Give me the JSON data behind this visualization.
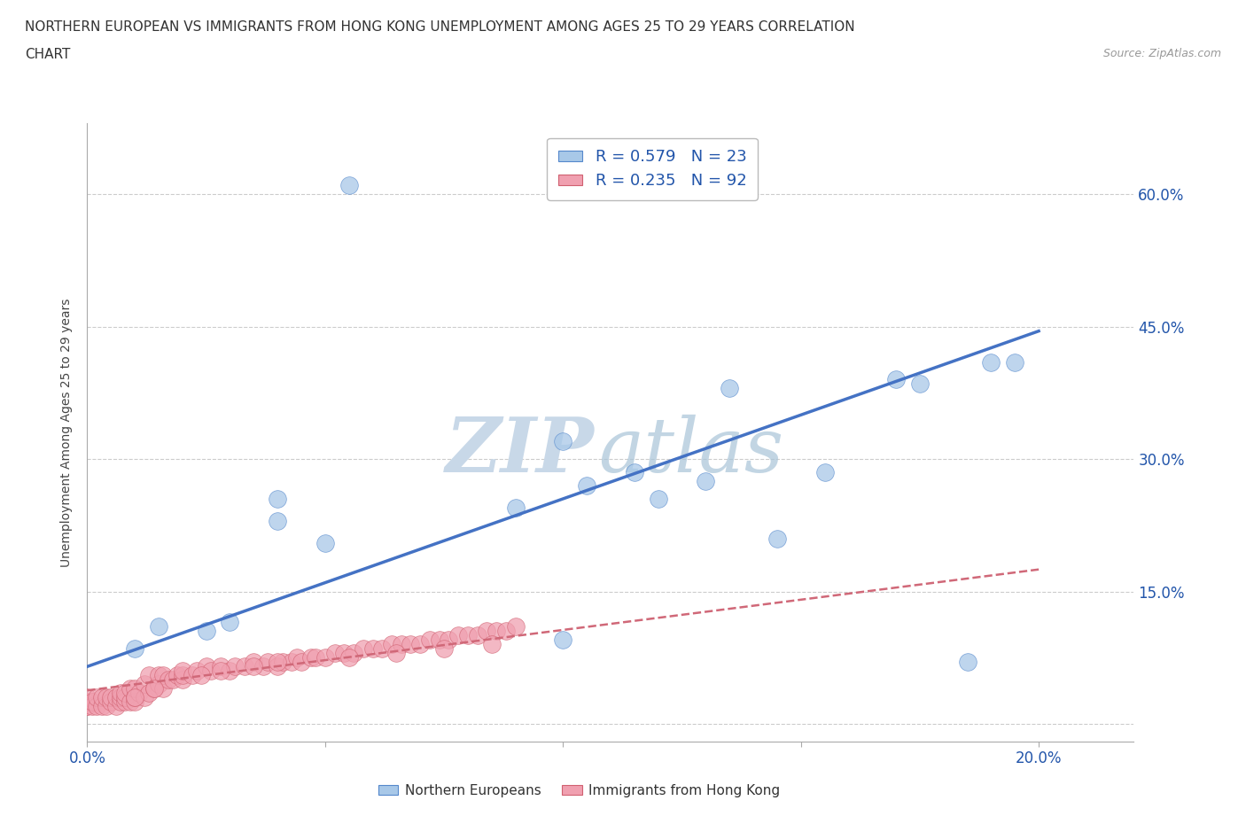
{
  "title_line1": "NORTHERN EUROPEAN VS IMMIGRANTS FROM HONG KONG UNEMPLOYMENT AMONG AGES 25 TO 29 YEARS CORRELATION",
  "title_line2": "CHART",
  "source_text": "Source: ZipAtlas.com",
  "ylabel": "Unemployment Among Ages 25 to 29 years",
  "xlim": [
    0.0,
    0.22
  ],
  "ylim": [
    -0.02,
    0.68
  ],
  "xticks": [
    0.0,
    0.05,
    0.1,
    0.15,
    0.2
  ],
  "xtick_labels": [
    "0.0%",
    "",
    "",
    "",
    "20.0%"
  ],
  "yticks": [
    0.0,
    0.15,
    0.3,
    0.45,
    0.6
  ],
  "ytick_labels_right": [
    "",
    "15.0%",
    "30.0%",
    "45.0%",
    "60.0%"
  ],
  "blue_scatter_x": [
    0.055,
    0.01,
    0.015,
    0.025,
    0.03,
    0.04,
    0.04,
    0.05,
    0.09,
    0.1,
    0.105,
    0.115,
    0.12,
    0.13,
    0.145,
    0.155,
    0.175,
    0.185,
    0.195,
    0.1,
    0.135,
    0.17,
    0.19
  ],
  "blue_scatter_y": [
    0.61,
    0.085,
    0.11,
    0.105,
    0.115,
    0.23,
    0.255,
    0.205,
    0.245,
    0.095,
    0.27,
    0.285,
    0.255,
    0.275,
    0.21,
    0.285,
    0.385,
    0.07,
    0.41,
    0.32,
    0.38,
    0.39,
    0.41
  ],
  "pink_scatter_x": [
    0.0,
    0.0,
    0.0,
    0.0,
    0.001,
    0.001,
    0.002,
    0.002,
    0.003,
    0.003,
    0.004,
    0.004,
    0.005,
    0.005,
    0.006,
    0.006,
    0.007,
    0.007,
    0.007,
    0.008,
    0.008,
    0.008,
    0.009,
    0.009,
    0.01,
    0.01,
    0.01,
    0.011,
    0.012,
    0.012,
    0.013,
    0.013,
    0.014,
    0.015,
    0.015,
    0.016,
    0.016,
    0.017,
    0.018,
    0.019,
    0.02,
    0.02,
    0.02,
    0.022,
    0.023,
    0.025,
    0.026,
    0.028,
    0.03,
    0.031,
    0.033,
    0.035,
    0.037,
    0.038,
    0.04,
    0.041,
    0.043,
    0.044,
    0.045,
    0.047,
    0.048,
    0.05,
    0.052,
    0.054,
    0.056,
    0.058,
    0.06,
    0.062,
    0.064,
    0.066,
    0.068,
    0.07,
    0.072,
    0.074,
    0.076,
    0.078,
    0.08,
    0.082,
    0.084,
    0.086,
    0.088,
    0.09,
    0.01,
    0.014,
    0.024,
    0.028,
    0.035,
    0.04,
    0.055,
    0.065,
    0.075,
    0.085
  ],
  "pink_scatter_y": [
    0.02,
    0.02,
    0.025,
    0.03,
    0.02,
    0.025,
    0.02,
    0.03,
    0.02,
    0.03,
    0.02,
    0.03,
    0.025,
    0.03,
    0.02,
    0.03,
    0.025,
    0.03,
    0.035,
    0.025,
    0.03,
    0.035,
    0.025,
    0.04,
    0.025,
    0.03,
    0.04,
    0.035,
    0.03,
    0.045,
    0.035,
    0.055,
    0.04,
    0.045,
    0.055,
    0.04,
    0.055,
    0.05,
    0.05,
    0.055,
    0.05,
    0.055,
    0.06,
    0.055,
    0.06,
    0.065,
    0.06,
    0.065,
    0.06,
    0.065,
    0.065,
    0.07,
    0.065,
    0.07,
    0.065,
    0.07,
    0.07,
    0.075,
    0.07,
    0.075,
    0.075,
    0.075,
    0.08,
    0.08,
    0.08,
    0.085,
    0.085,
    0.085,
    0.09,
    0.09,
    0.09,
    0.09,
    0.095,
    0.095,
    0.095,
    0.1,
    0.1,
    0.1,
    0.105,
    0.105,
    0.105,
    0.11,
    0.03,
    0.04,
    0.055,
    0.06,
    0.065,
    0.07,
    0.075,
    0.08,
    0.085,
    0.09
  ],
  "blue_line_x": [
    0.0,
    0.2
  ],
  "blue_line_y": [
    0.065,
    0.445
  ],
  "pink_line_x": [
    0.0,
    0.2
  ],
  "pink_line_y": [
    0.038,
    0.175
  ],
  "blue_dot_color": "#A8C8E8",
  "blue_edge_color": "#5588CC",
  "pink_dot_color": "#F0A0B0",
  "pink_edge_color": "#D06070",
  "blue_line_color": "#4472C4",
  "pink_line_color": "#D06878",
  "grid_color": "#CCCCCC",
  "legend_text_color": "#2255AA",
  "R_blue": 0.579,
  "N_blue": 23,
  "R_pink": 0.235,
  "N_pink": 92,
  "legend_blue_patch": "#A8C8E8",
  "legend_pink_patch": "#F0A0B0"
}
